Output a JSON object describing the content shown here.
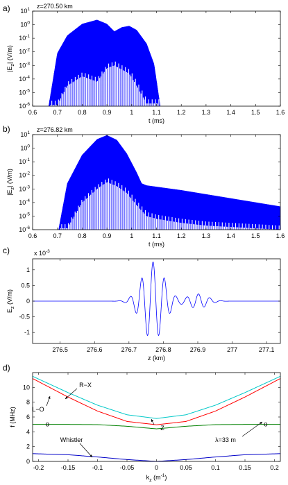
{
  "chart_data": [
    {
      "panel_label": "a)",
      "type": "area",
      "annotation": "z=270.50 km",
      "xlabel": "t (ms)",
      "ylabel_main": "|E",
      "ylabel_sub": "z",
      "ylabel_tail": "| (V/m)",
      "yscale": "log",
      "xlim": [
        0.6,
        1.6
      ],
      "ylim_exp": [
        -6,
        1
      ],
      "x_ticks": [
        0.6,
        0.7,
        0.8,
        0.9,
        1.0,
        1.1,
        1.2,
        1.3,
        1.4,
        1.5,
        1.6
      ],
      "x_tick_labels": [
        "0.6",
        "0.7",
        "0.8",
        "0.9",
        "1",
        "1.1",
        "1.2",
        "1.3",
        "1.4",
        "1.5",
        "1.6"
      ],
      "y_tick_exps": [
        1,
        0,
        -1,
        -2,
        -3,
        -4,
        -5,
        -6
      ],
      "envelope": [
        [
          0.665,
          -6
        ],
        [
          0.7,
          -2.1
        ],
        [
          0.74,
          -0.8
        ],
        [
          0.8,
          0.05
        ],
        [
          0.86,
          0.35
        ],
        [
          0.9,
          0.05
        ],
        [
          0.93,
          -0.5
        ],
        [
          0.96,
          -0.2
        ],
        [
          0.99,
          -0.1
        ],
        [
          1.02,
          -0.4
        ],
        [
          1.06,
          -1.4
        ],
        [
          1.09,
          -2.9
        ],
        [
          1.115,
          -6
        ]
      ],
      "floor_start": [
        0.7,
        0.74,
        0.8,
        0.86,
        0.9,
        0.93,
        0.99,
        1.02,
        1.06
      ],
      "floor_end": [
        -5.9,
        -4.5,
        -3.8,
        -4.2,
        -3.2,
        -3.0,
        -3.6,
        -4.5,
        -5.8
      ],
      "color": "#0000ff"
    },
    {
      "panel_label": "b)",
      "type": "area",
      "annotation": "z=276.82 km",
      "xlabel": "t (ms)",
      "ylabel_main": "|E",
      "ylabel_sub": "z",
      "ylabel_tail": "| (V/m)",
      "yscale": "log",
      "xlim": [
        0.6,
        1.6
      ],
      "ylim_exp": [
        -6,
        1
      ],
      "x_ticks": [
        0.6,
        0.7,
        0.8,
        0.9,
        1.0,
        1.1,
        1.2,
        1.3,
        1.4,
        1.5,
        1.6
      ],
      "x_tick_labels": [
        "0.6",
        "0.7",
        "0.8",
        "0.9",
        "1",
        "1.1",
        "1.2",
        "1.3",
        "1.4",
        "1.5",
        "1.6"
      ],
      "y_tick_exps": [
        1,
        0,
        -1,
        -2,
        -3,
        -4,
        -5,
        -6
      ],
      "envelope": [
        [
          0.705,
          -6
        ],
        [
          0.74,
          -2.6
        ],
        [
          0.8,
          -0.5
        ],
        [
          0.86,
          0.65
        ],
        [
          0.9,
          0.95
        ],
        [
          0.94,
          0.6
        ],
        [
          0.98,
          -0.4
        ],
        [
          1.02,
          -1.8
        ],
        [
          1.04,
          -2.6
        ],
        [
          1.06,
          -2.75
        ],
        [
          1.1,
          -2.85
        ],
        [
          1.2,
          -3.1
        ],
        [
          1.3,
          -3.4
        ],
        [
          1.4,
          -3.7
        ],
        [
          1.5,
          -4.0
        ],
        [
          1.6,
          -4.3
        ]
      ],
      "floor_start": [
        0.74,
        0.8,
        0.86,
        0.9,
        0.94,
        0.98,
        1.02,
        1.04,
        1.06,
        1.1,
        1.2,
        1.3,
        1.4,
        1.5,
        1.6
      ],
      "floor_end": [
        -5.9,
        -4.0,
        -3.0,
        -2.5,
        -2.8,
        -3.3,
        -4.2,
        -4.6,
        -5.0,
        -5.2,
        -5.5,
        -5.7,
        -5.8,
        -5.9,
        -6
      ],
      "color": "#0000ff"
    },
    {
      "panel_label": "c)",
      "type": "line",
      "xlabel": "z (km)",
      "ylabel_main": "E",
      "ylabel_sub": "z",
      "ylabel_tail": " (V/m)",
      "multiplier": "x 10",
      "multiplier_exp": "-3",
      "xlim": [
        276.42,
        277.14
      ],
      "ylim": [
        -1.35,
        1.35
      ],
      "x_ticks": [
        276.5,
        276.6,
        276.7,
        276.8,
        276.9,
        277.0,
        277.1
      ],
      "x_tick_labels": [
        "276.5",
        "276.6",
        "276.7",
        "276.8",
        "276.9",
        "277",
        "277.1"
      ],
      "y_ticks": [
        -1,
        -0.5,
        0,
        0.5,
        1
      ],
      "y_tick_labels": [
        "-1",
        "-0.5",
        "0",
        "0.5",
        "1"
      ],
      "wave": {
        "center": 276.77,
        "wavelength": 0.033,
        "amplitude": 1.25,
        "width": 0.045,
        "side_center": 276.9,
        "side_amplitude": 0.23,
        "side_width": 0.04
      },
      "color": "#0000ff"
    },
    {
      "panel_label": "d)",
      "type": "line",
      "xlabel_main": "k",
      "xlabel_sub": "z",
      "xlabel_tail": " (m",
      "xlabel_sup": "-1",
      "xlabel_close": ")",
      "ylabel": "f (MHz)",
      "xlim": [
        -0.21,
        0.21
      ],
      "ylim": [
        0,
        12
      ],
      "x_ticks": [
        -0.2,
        -0.15,
        -0.1,
        -0.05,
        0,
        0.05,
        0.1,
        0.15,
        0.2
      ],
      "x_tick_labels": [
        "-0.2",
        "-0.15",
        "-0.1",
        "-0.05",
        "0",
        "0.05",
        "0.1",
        "0.15",
        "0.2"
      ],
      "y_ticks": [
        0,
        2,
        4,
        6,
        8,
        10
      ],
      "y_tick_labels": [
        "0",
        "2",
        "4",
        "6",
        "8",
        "10"
      ],
      "series": [
        {
          "name": "R−X",
          "color": "#00c8c8",
          "x": [
            -0.21,
            -0.15,
            -0.1,
            -0.05,
            0,
            0.05,
            0.1,
            0.15,
            0.21
          ],
          "y": [
            11.5,
            9.3,
            7.6,
            6.3,
            5.8,
            6.3,
            7.6,
            9.3,
            11.5
          ]
        },
        {
          "name": "L−O",
          "color": "#ff0000",
          "x": [
            -0.21,
            -0.15,
            -0.1,
            -0.05,
            0,
            0.05,
            0.1,
            0.15,
            0.21
          ],
          "y": [
            11.2,
            8.7,
            6.8,
            5.4,
            4.95,
            5.4,
            6.8,
            8.7,
            11.2
          ]
        },
        {
          "name": "Z",
          "color": "#008000",
          "x": [
            -0.21,
            -0.15,
            -0.1,
            -0.05,
            0,
            0.05,
            0.1,
            0.15,
            0.21
          ],
          "y": [
            5.0,
            5.0,
            4.97,
            4.75,
            4.4,
            4.75,
            4.97,
            5.0,
            5.0
          ]
        },
        {
          "name": "Whistler",
          "color": "#0000c8",
          "x": [
            -0.21,
            -0.15,
            -0.1,
            -0.05,
            0,
            0.05,
            0.1,
            0.15,
            0.21
          ],
          "y": [
            1.05,
            0.9,
            0.6,
            0.25,
            0.0,
            0.25,
            0.6,
            0.9,
            1.05
          ]
        }
      ],
      "markers": [
        {
          "label": "o",
          "x": -0.185,
          "y": 5.0
        },
        {
          "label": "o",
          "x": 0.185,
          "y": 5.0
        }
      ],
      "annotations": [
        {
          "text": "R−X",
          "series": "R−X"
        },
        {
          "text": "L−O",
          "series": "L−O"
        },
        {
          "text": "Z",
          "series": "Z"
        },
        {
          "text": "Whistler",
          "series": "Whistler"
        },
        {
          "text": "λ=33 m",
          "series": "marker"
        }
      ]
    }
  ]
}
